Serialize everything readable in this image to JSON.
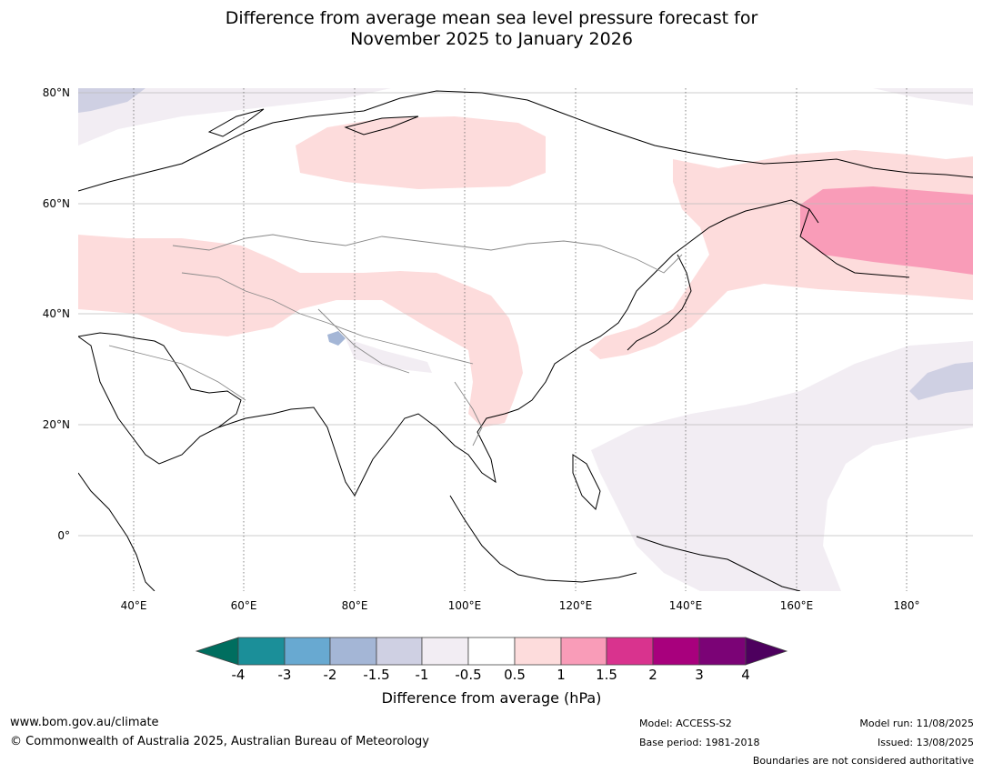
{
  "title": {
    "line1": "Difference from average mean sea level pressure forecast for",
    "line2": "November 2025 to January 2026"
  },
  "map": {
    "lat_labels": [
      "80°N",
      "60°N",
      "40°N",
      "20°N",
      "0°"
    ],
    "lon_labels": [
      "40°E",
      "60°E",
      "80°E",
      "100°E",
      "120°E",
      "140°E",
      "160°E",
      "180°"
    ],
    "lon_range": [
      30,
      192
    ],
    "lat_range": [
      -10,
      81
    ]
  },
  "colorbar": {
    "title": "Difference from average (hPa)",
    "ticks": [
      "-4",
      "-3",
      "-2",
      "-1.5",
      "-1",
      "-0.5",
      "0.5",
      "1",
      "1.5",
      "2",
      "3",
      "4"
    ],
    "colors": {
      "below_min": "#006e5f",
      "bins": [
        "#1b8f99",
        "#68a9d1",
        "#a4b6d6",
        "#cfd0e3",
        "#f2edf3",
        "#ffffff",
        "#fddcdc",
        "#f99cb8",
        "#d9338e",
        "#a8007d",
        "#7b0376"
      ],
      "above_max": "#4d005e"
    }
  },
  "footer": {
    "website": "www.bom.gov.au/climate",
    "copyright": "© Commonwealth of Australia 2025, Australian Bureau of Meteorology",
    "model": "Model: ACCESS-S2",
    "base_period": "Base period: 1981-2018",
    "model_run": "Model run: 11/08/2025",
    "issued": "Issued: 13/08/2025",
    "disclaimer": "Boundaries are not considered authoritative"
  }
}
